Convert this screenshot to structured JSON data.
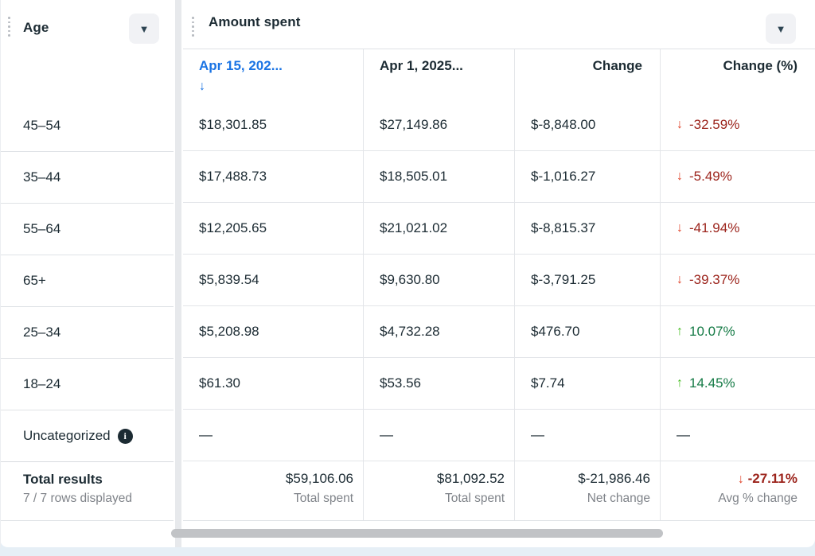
{
  "left_panel": {
    "header": {
      "label": "Age"
    },
    "footer": {
      "title": "Total results",
      "subtitle": "7 / 7 rows displayed"
    }
  },
  "right_panel": {
    "header": {
      "label": "Amount spent"
    },
    "columns": {
      "date_a": {
        "label": "Apr 15, 202...",
        "sort_state": "descending",
        "sort_arrow": "↓"
      },
      "date_b": {
        "label": "Apr 1, 2025..."
      },
      "change": {
        "label": "Change"
      },
      "change_pct": {
        "label": "Change (%)"
      }
    }
  },
  "rows": [
    {
      "age": "45–54",
      "spent_current": "$18,301.85",
      "spent_previous": "$27,149.86",
      "change": "$-8,848.00",
      "change_pct": "-32.59%",
      "trend": "down",
      "trend_arrow": "↓"
    },
    {
      "age": "35–44",
      "spent_current": "$17,488.73",
      "spent_previous": "$18,505.01",
      "change": "$-1,016.27",
      "change_pct": "-5.49%",
      "trend": "down",
      "trend_arrow": "↓"
    },
    {
      "age": "55–64",
      "spent_current": "$12,205.65",
      "spent_previous": "$21,021.02",
      "change": "$-8,815.37",
      "change_pct": "-41.94%",
      "trend": "down",
      "trend_arrow": "↓"
    },
    {
      "age": "65+",
      "spent_current": "$5,839.54",
      "spent_previous": "$9,630.80",
      "change": "$-3,791.25",
      "change_pct": "-39.37%",
      "trend": "down",
      "trend_arrow": "↓"
    },
    {
      "age": "25–34",
      "spent_current": "$5,208.98",
      "spent_previous": "$4,732.28",
      "change": "$476.70",
      "change_pct": "10.07%",
      "trend": "up",
      "trend_arrow": "↑"
    },
    {
      "age": "18–24",
      "spent_current": "$61.30",
      "spent_previous": "$53.56",
      "change": "$7.74",
      "change_pct": "14.45%",
      "trend": "up",
      "trend_arrow": "↑"
    },
    {
      "age": "Uncategorized",
      "info_icon": "i",
      "spent_current": "—",
      "spent_previous": "—",
      "change": "—",
      "change_pct": "—",
      "trend": "none"
    }
  ],
  "totals": {
    "spent_current": {
      "value": "$59,106.06",
      "label": "Total spent"
    },
    "spent_previous": {
      "value": "$81,092.52",
      "label": "Total spent"
    },
    "change": {
      "value": "$-21,986.46",
      "label": "Net change"
    },
    "change_pct": {
      "value": "-27.11%",
      "label": "Avg % change",
      "trend": "down",
      "trend_arrow": "↓"
    }
  },
  "colors": {
    "accent_blue": "#1b74e4",
    "negative_arrow": "#e0452c",
    "negative_text": "#9c241c",
    "positive_arrow": "#45bd20",
    "positive_text": "#147a45",
    "text_dark": "#1c2b33",
    "text_muted": "#7f8389",
    "page_background": "#e6eff6"
  }
}
